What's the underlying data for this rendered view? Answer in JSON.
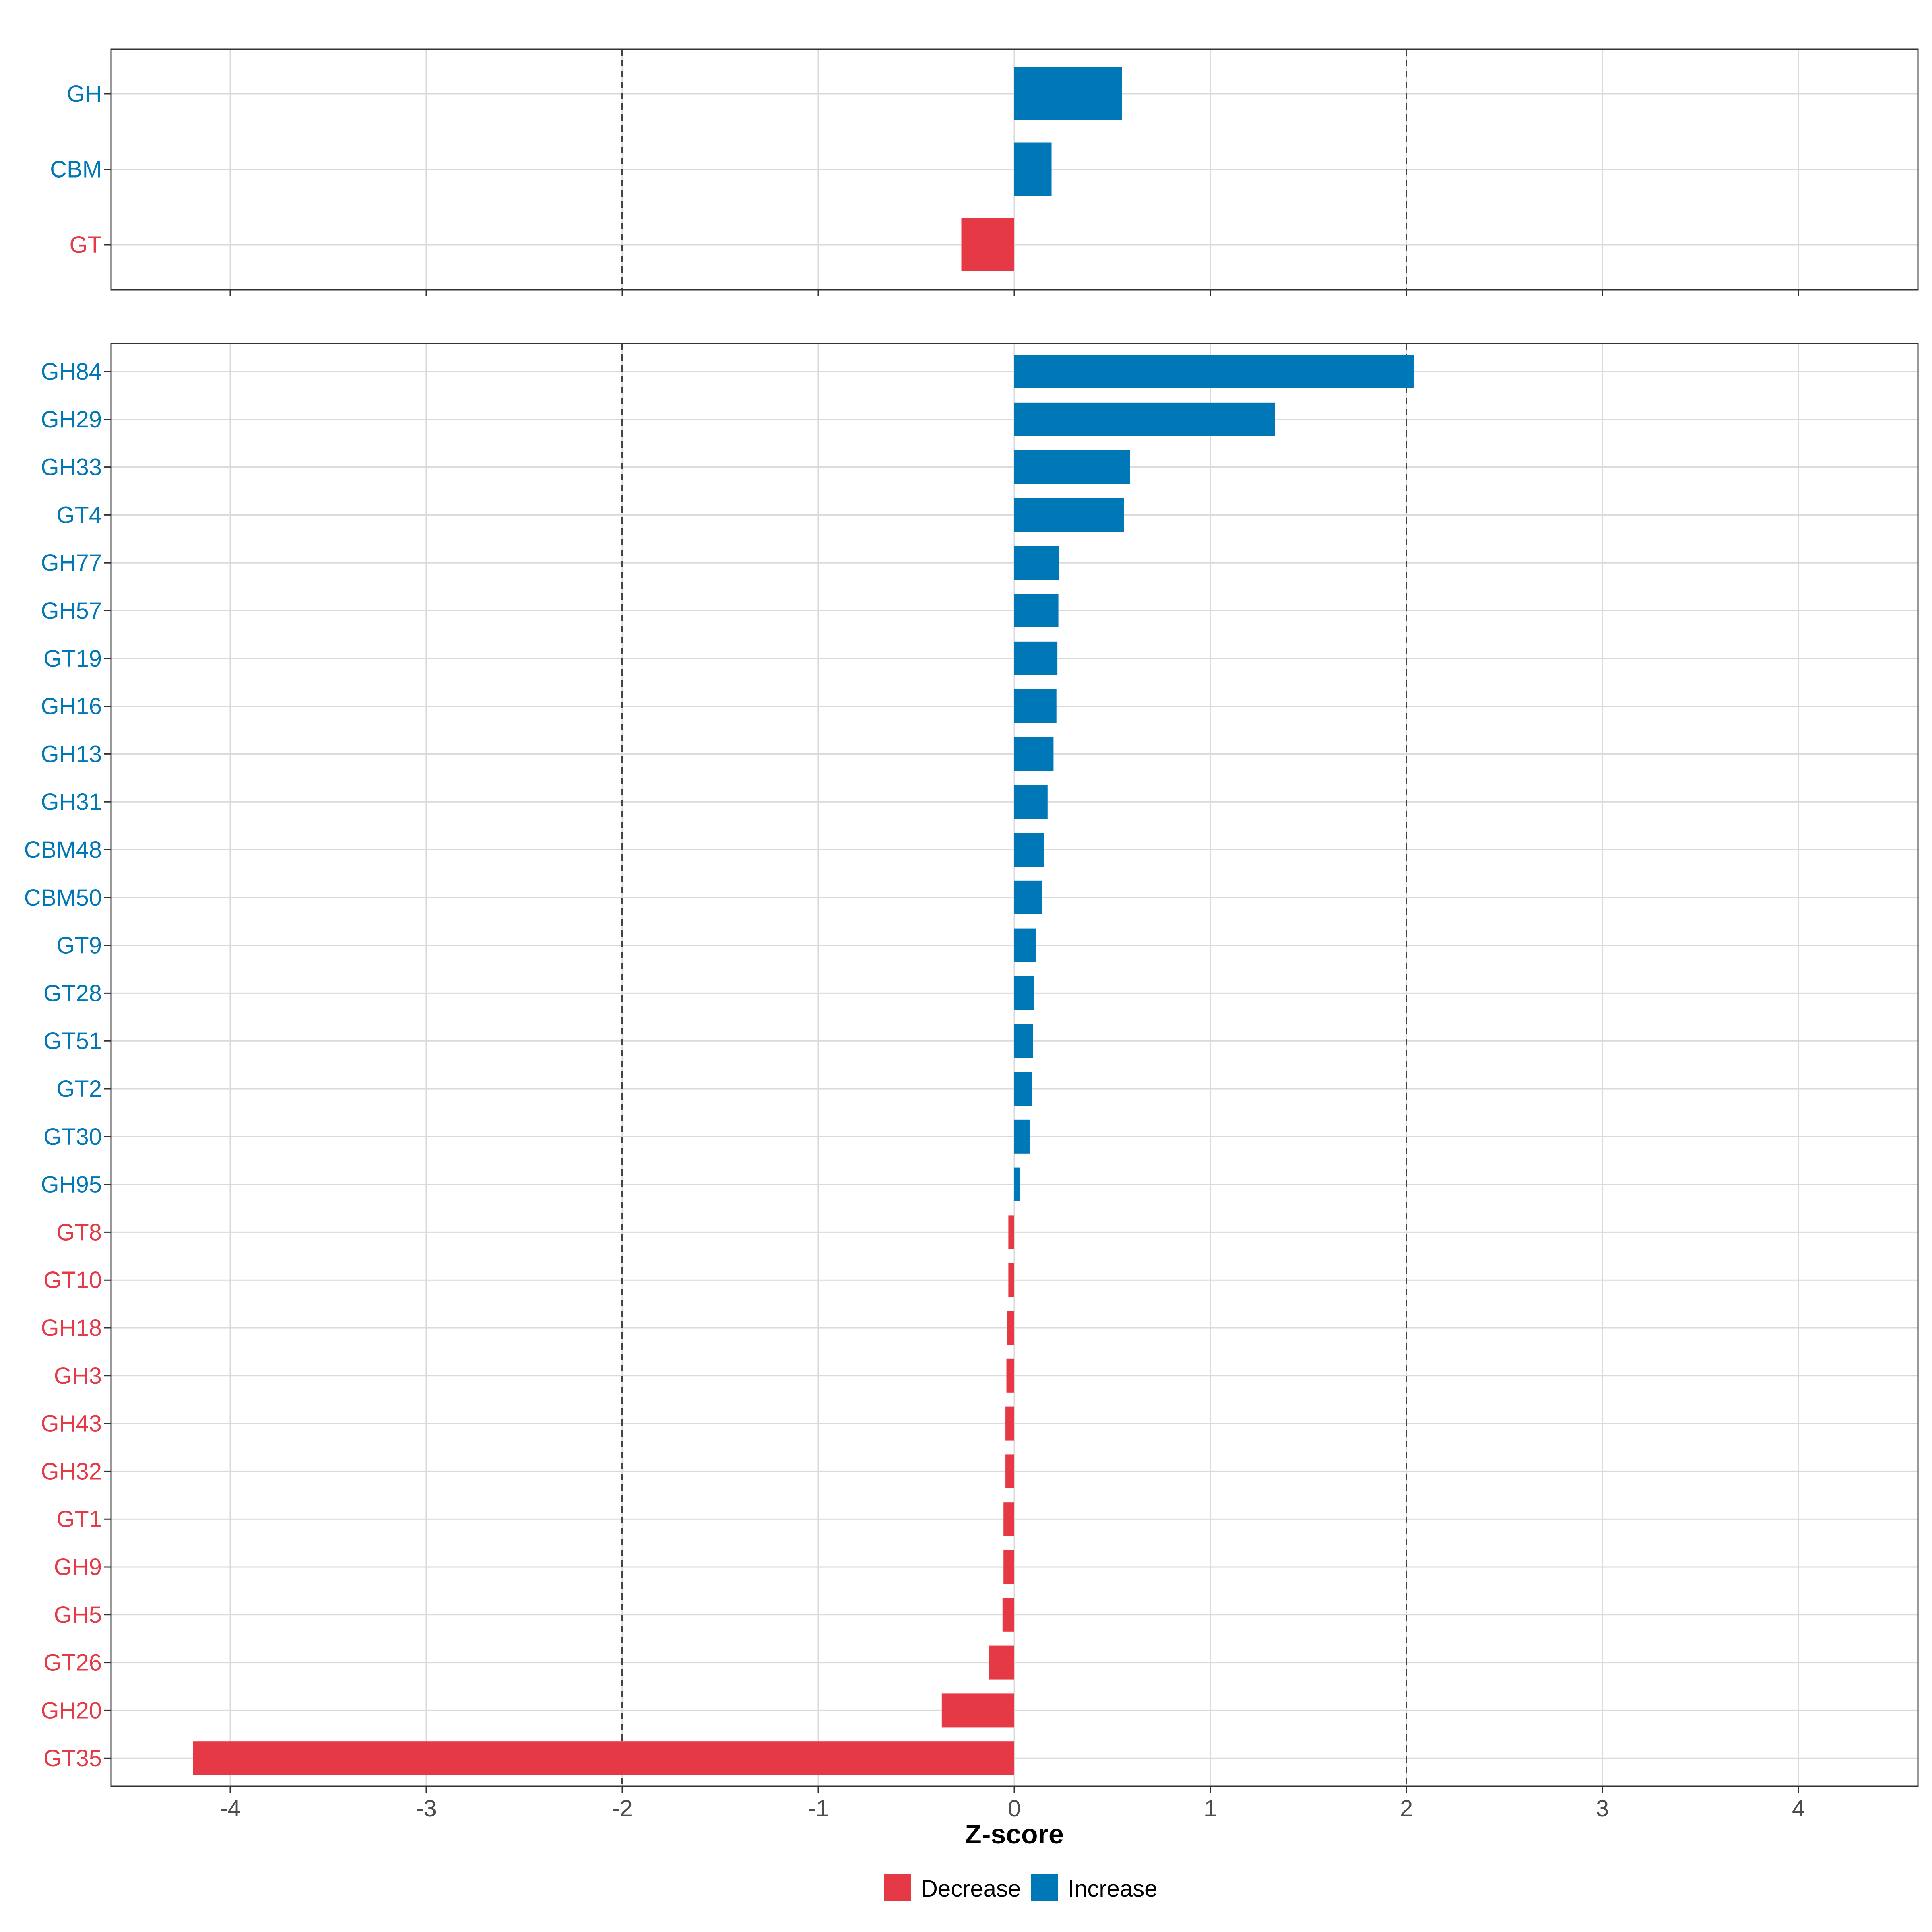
{
  "chart_data": {
    "type": "bar",
    "orientation": "horizontal",
    "xlabel": "Z-score",
    "xlim": [
      -4.6,
      4.6
    ],
    "x_ticks": [
      -4,
      -3,
      -2,
      -1,
      0,
      1,
      2,
      3,
      4
    ],
    "x_tick_labels": [
      "-4",
      "-3",
      "-2",
      "-1",
      "0",
      "1",
      "2",
      "3",
      "4"
    ],
    "reference_lines": [
      -2,
      2
    ],
    "grid": true,
    "colors": {
      "Decrease": "#E63946",
      "Increase": "#0077B6"
    },
    "legend": {
      "position": "bottom",
      "items": [
        {
          "label": "Decrease",
          "color": "#E63946"
        },
        {
          "label": "Increase",
          "color": "#0077B6"
        }
      ]
    },
    "panels": [
      {
        "name": "class",
        "categories": [
          "GH",
          "CBM",
          "GT"
        ],
        "values": [
          0.55,
          0.19,
          -0.27
        ]
      },
      {
        "name": "family",
        "categories": [
          "GH84",
          "GH29",
          "GH33",
          "GT4",
          "GH77",
          "GH57",
          "GT19",
          "GH16",
          "GH13",
          "GH31",
          "CBM48",
          "CBM50",
          "GT9",
          "GT28",
          "GT51",
          "GT2",
          "GT30",
          "GH95",
          "GT8",
          "GT10",
          "GH18",
          "GH3",
          "GH43",
          "GH32",
          "GT1",
          "GH9",
          "GH5",
          "GT26",
          "GH20",
          "GT35"
        ],
        "values": [
          2.04,
          1.33,
          0.59,
          0.56,
          0.23,
          0.225,
          0.22,
          0.215,
          0.2,
          0.17,
          0.15,
          0.14,
          0.11,
          0.1,
          0.095,
          0.09,
          0.08,
          0.03,
          -0.03,
          -0.03,
          -0.035,
          -0.04,
          -0.045,
          -0.045,
          -0.055,
          -0.055,
          -0.06,
          -0.13,
          -0.37,
          -4.19
        ]
      }
    ]
  }
}
